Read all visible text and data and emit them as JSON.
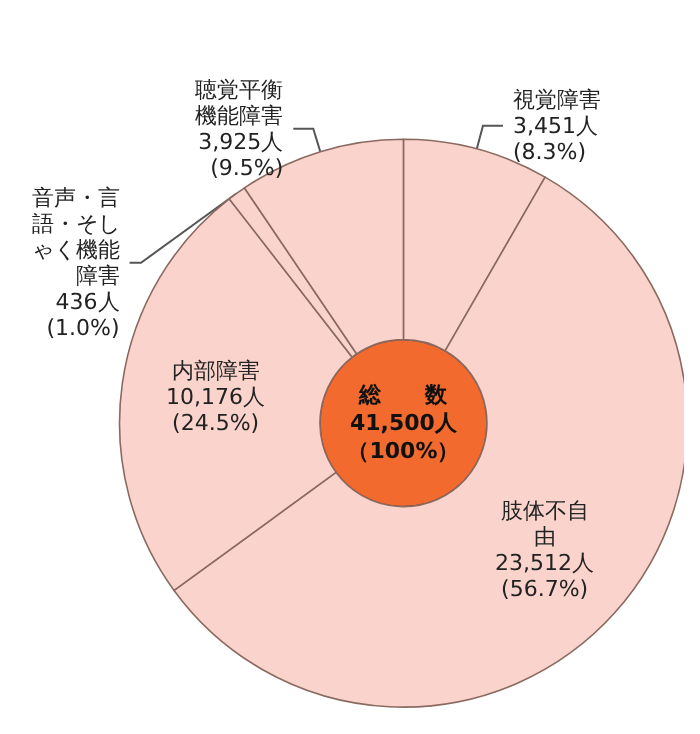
{
  "chart_data": {
    "type": "donut",
    "categories": [
      "視覚障害",
      "肢体不自由",
      "内部障害",
      "音声・言語・そしゃく機能障害",
      "聴覚平衡機能障害"
    ],
    "values": [
      3451,
      23512,
      10176,
      436,
      3925
    ],
    "value_labels": [
      "3,451人\n(8.3%)",
      "23,512人\n(56.7%)",
      "10,176人\n(24.5%)",
      "436人\n(1.0%)",
      "3,925人\n(9.5%)"
    ],
    "colors": [
      "#fad4cc",
      "#fad4cc",
      "#fad4cc",
      "#fad4cc",
      "#fad4cc"
    ],
    "annotations": [
      "総　　数",
      "41,500人",
      "（100%）"
    ],
    "legend": false
  }
}
